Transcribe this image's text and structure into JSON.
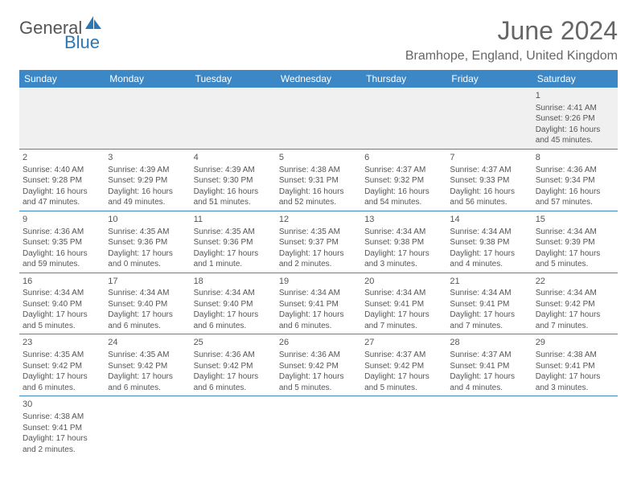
{
  "logo": {
    "part1": "General",
    "part2": "Blue"
  },
  "title": "June 2024",
  "location": "Bramhope, England, United Kingdom",
  "colors": {
    "header_bg": "#3c87c5",
    "header_text": "#ffffff",
    "text": "#555555",
    "border": "#3c87c5",
    "prefill_bg": "#f0f0f0"
  },
  "dayNames": [
    "Sunday",
    "Monday",
    "Tuesday",
    "Wednesday",
    "Thursday",
    "Friday",
    "Saturday"
  ],
  "weeks": [
    [
      {
        "blank": true
      },
      {
        "blank": true
      },
      {
        "blank": true
      },
      {
        "blank": true
      },
      {
        "blank": true
      },
      {
        "blank": true
      },
      {
        "num": "1",
        "sunrise": "Sunrise: 4:41 AM",
        "sunset": "Sunset: 9:26 PM",
        "daylight1": "Daylight: 16 hours",
        "daylight2": "and 45 minutes."
      }
    ],
    [
      {
        "num": "2",
        "sunrise": "Sunrise: 4:40 AM",
        "sunset": "Sunset: 9:28 PM",
        "daylight1": "Daylight: 16 hours",
        "daylight2": "and 47 minutes."
      },
      {
        "num": "3",
        "sunrise": "Sunrise: 4:39 AM",
        "sunset": "Sunset: 9:29 PM",
        "daylight1": "Daylight: 16 hours",
        "daylight2": "and 49 minutes."
      },
      {
        "num": "4",
        "sunrise": "Sunrise: 4:39 AM",
        "sunset": "Sunset: 9:30 PM",
        "daylight1": "Daylight: 16 hours",
        "daylight2": "and 51 minutes."
      },
      {
        "num": "5",
        "sunrise": "Sunrise: 4:38 AM",
        "sunset": "Sunset: 9:31 PM",
        "daylight1": "Daylight: 16 hours",
        "daylight2": "and 52 minutes."
      },
      {
        "num": "6",
        "sunrise": "Sunrise: 4:37 AM",
        "sunset": "Sunset: 9:32 PM",
        "daylight1": "Daylight: 16 hours",
        "daylight2": "and 54 minutes."
      },
      {
        "num": "7",
        "sunrise": "Sunrise: 4:37 AM",
        "sunset": "Sunset: 9:33 PM",
        "daylight1": "Daylight: 16 hours",
        "daylight2": "and 56 minutes."
      },
      {
        "num": "8",
        "sunrise": "Sunrise: 4:36 AM",
        "sunset": "Sunset: 9:34 PM",
        "daylight1": "Daylight: 16 hours",
        "daylight2": "and 57 minutes."
      }
    ],
    [
      {
        "num": "9",
        "sunrise": "Sunrise: 4:36 AM",
        "sunset": "Sunset: 9:35 PM",
        "daylight1": "Daylight: 16 hours",
        "daylight2": "and 59 minutes."
      },
      {
        "num": "10",
        "sunrise": "Sunrise: 4:35 AM",
        "sunset": "Sunset: 9:36 PM",
        "daylight1": "Daylight: 17 hours",
        "daylight2": "and 0 minutes."
      },
      {
        "num": "11",
        "sunrise": "Sunrise: 4:35 AM",
        "sunset": "Sunset: 9:36 PM",
        "daylight1": "Daylight: 17 hours",
        "daylight2": "and 1 minute."
      },
      {
        "num": "12",
        "sunrise": "Sunrise: 4:35 AM",
        "sunset": "Sunset: 9:37 PM",
        "daylight1": "Daylight: 17 hours",
        "daylight2": "and 2 minutes."
      },
      {
        "num": "13",
        "sunrise": "Sunrise: 4:34 AM",
        "sunset": "Sunset: 9:38 PM",
        "daylight1": "Daylight: 17 hours",
        "daylight2": "and 3 minutes."
      },
      {
        "num": "14",
        "sunrise": "Sunrise: 4:34 AM",
        "sunset": "Sunset: 9:38 PM",
        "daylight1": "Daylight: 17 hours",
        "daylight2": "and 4 minutes."
      },
      {
        "num": "15",
        "sunrise": "Sunrise: 4:34 AM",
        "sunset": "Sunset: 9:39 PM",
        "daylight1": "Daylight: 17 hours",
        "daylight2": "and 5 minutes."
      }
    ],
    [
      {
        "num": "16",
        "sunrise": "Sunrise: 4:34 AM",
        "sunset": "Sunset: 9:40 PM",
        "daylight1": "Daylight: 17 hours",
        "daylight2": "and 5 minutes."
      },
      {
        "num": "17",
        "sunrise": "Sunrise: 4:34 AM",
        "sunset": "Sunset: 9:40 PM",
        "daylight1": "Daylight: 17 hours",
        "daylight2": "and 6 minutes."
      },
      {
        "num": "18",
        "sunrise": "Sunrise: 4:34 AM",
        "sunset": "Sunset: 9:40 PM",
        "daylight1": "Daylight: 17 hours",
        "daylight2": "and 6 minutes."
      },
      {
        "num": "19",
        "sunrise": "Sunrise: 4:34 AM",
        "sunset": "Sunset: 9:41 PM",
        "daylight1": "Daylight: 17 hours",
        "daylight2": "and 6 minutes."
      },
      {
        "num": "20",
        "sunrise": "Sunrise: 4:34 AM",
        "sunset": "Sunset: 9:41 PM",
        "daylight1": "Daylight: 17 hours",
        "daylight2": "and 7 minutes."
      },
      {
        "num": "21",
        "sunrise": "Sunrise: 4:34 AM",
        "sunset": "Sunset: 9:41 PM",
        "daylight1": "Daylight: 17 hours",
        "daylight2": "and 7 minutes."
      },
      {
        "num": "22",
        "sunrise": "Sunrise: 4:34 AM",
        "sunset": "Sunset: 9:42 PM",
        "daylight1": "Daylight: 17 hours",
        "daylight2": "and 7 minutes."
      }
    ],
    [
      {
        "num": "23",
        "sunrise": "Sunrise: 4:35 AM",
        "sunset": "Sunset: 9:42 PM",
        "daylight1": "Daylight: 17 hours",
        "daylight2": "and 6 minutes."
      },
      {
        "num": "24",
        "sunrise": "Sunrise: 4:35 AM",
        "sunset": "Sunset: 9:42 PM",
        "daylight1": "Daylight: 17 hours",
        "daylight2": "and 6 minutes."
      },
      {
        "num": "25",
        "sunrise": "Sunrise: 4:36 AM",
        "sunset": "Sunset: 9:42 PM",
        "daylight1": "Daylight: 17 hours",
        "daylight2": "and 6 minutes."
      },
      {
        "num": "26",
        "sunrise": "Sunrise: 4:36 AM",
        "sunset": "Sunset: 9:42 PM",
        "daylight1": "Daylight: 17 hours",
        "daylight2": "and 5 minutes."
      },
      {
        "num": "27",
        "sunrise": "Sunrise: 4:37 AM",
        "sunset": "Sunset: 9:42 PM",
        "daylight1": "Daylight: 17 hours",
        "daylight2": "and 5 minutes."
      },
      {
        "num": "28",
        "sunrise": "Sunrise: 4:37 AM",
        "sunset": "Sunset: 9:41 PM",
        "daylight1": "Daylight: 17 hours",
        "daylight2": "and 4 minutes."
      },
      {
        "num": "29",
        "sunrise": "Sunrise: 4:38 AM",
        "sunset": "Sunset: 9:41 PM",
        "daylight1": "Daylight: 17 hours",
        "daylight2": "and 3 minutes."
      }
    ],
    [
      {
        "num": "30",
        "sunrise": "Sunrise: 4:38 AM",
        "sunset": "Sunset: 9:41 PM",
        "daylight1": "Daylight: 17 hours",
        "daylight2": "and 2 minutes."
      },
      {
        "blank": true
      },
      {
        "blank": true
      },
      {
        "blank": true
      },
      {
        "blank": true
      },
      {
        "blank": true
      },
      {
        "blank": true
      }
    ]
  ]
}
